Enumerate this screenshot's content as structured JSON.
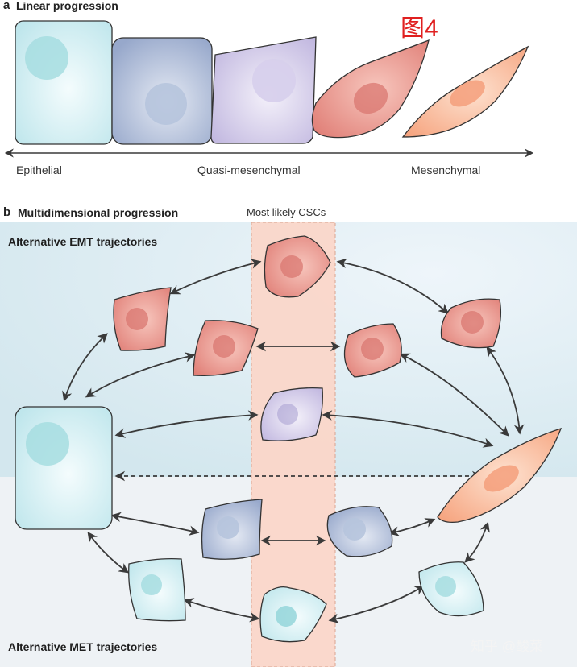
{
  "panel_a": {
    "letter": "a",
    "title": "Linear progression",
    "axis_labels": [
      "Epithelial",
      "Quasi-mesenchymal",
      "Mesenchymal"
    ]
  },
  "figure_tag": "图4",
  "panel_b": {
    "letter": "b",
    "title": "Multidimensional progression",
    "csc_label": "Most likely CSCs",
    "emt_title": "Alternative EMT trajectories",
    "met_title": "Alternative MET trajectories"
  },
  "watermark": "知乎 @酸菜",
  "colors": {
    "epithelial": "#c7eaee",
    "blue": "#a9b7d4",
    "lilac": "#c7bfe4",
    "red": "#e58e86",
    "orange": "#f7b08e",
    "csc_band": "#fbd8cc",
    "emt_bg": "#dcebf1",
    "met_bg": "#eef3f6"
  }
}
